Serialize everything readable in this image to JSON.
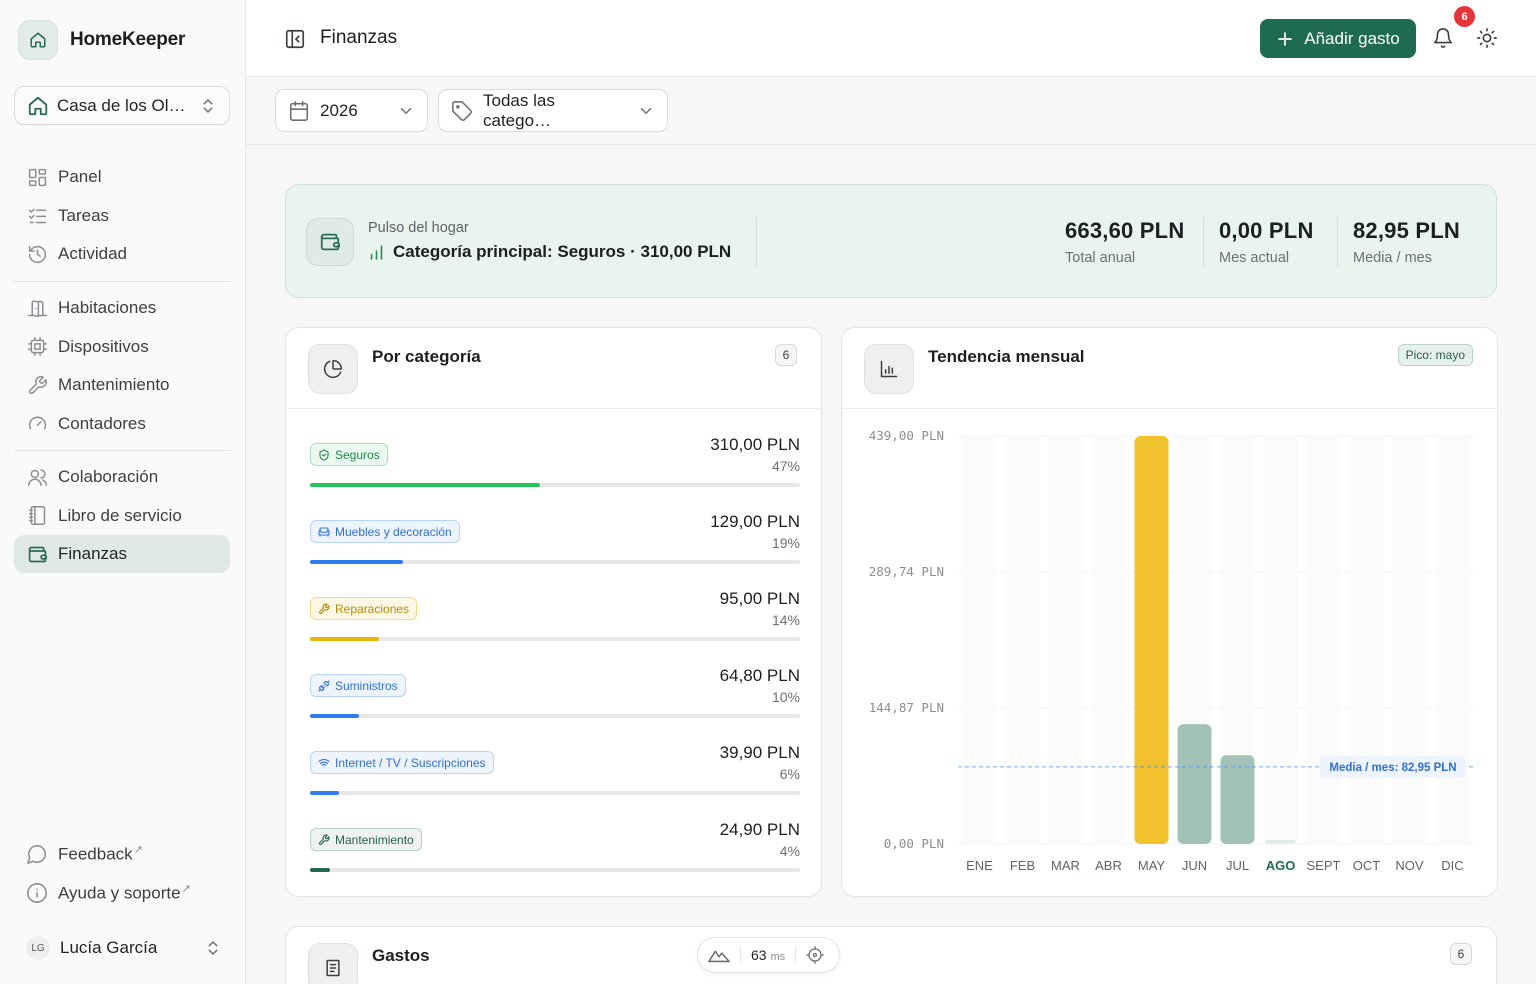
{
  "app": {
    "name": "HomeKeeper",
    "home_select": "Casa de los Ol…"
  },
  "nav": {
    "main": [
      {
        "label": "Panel",
        "icon": "grid-icon"
      },
      {
        "label": "Tareas",
        "icon": "checklist-icon"
      },
      {
        "label": "Actividad",
        "icon": "history-icon"
      }
    ],
    "assets": [
      {
        "label": "Habitaciones",
        "icon": "door-icon"
      },
      {
        "label": "Dispositivos",
        "icon": "chip-icon"
      },
      {
        "label": "Mantenimiento",
        "icon": "wrench-icon"
      },
      {
        "label": "Contadores",
        "icon": "gauge-icon"
      }
    ],
    "other": [
      {
        "label": "Colaboración",
        "icon": "users-icon"
      },
      {
        "label": "Libro de servicio",
        "icon": "book-icon"
      },
      {
        "label": "Finanzas",
        "icon": "wallet-icon",
        "active": true
      }
    ],
    "footer": [
      {
        "label": "Feedback",
        "icon": "chat-icon"
      },
      {
        "label": "Ayuda y soporte",
        "icon": "info-icon"
      }
    ]
  },
  "user": {
    "initials": "LG",
    "name": "Lucía García"
  },
  "header": {
    "title": "Finanzas",
    "add_label": "Añadir gasto",
    "notification_count": "6"
  },
  "filters": {
    "year": "2026",
    "category": "Todas las catego…"
  },
  "pulse": {
    "label": "Pulso del hogar",
    "principal": "Categoría principal: Seguros · 310,00 PLN",
    "kpis": [
      {
        "value": "663,60 PLN",
        "label": "Total anual"
      },
      {
        "value": "0,00 PLN",
        "label": "Mes actual"
      },
      {
        "value": "82,95 PLN",
        "label": "Media / mes"
      }
    ]
  },
  "by_category": {
    "title": "Por categoría",
    "count": "6",
    "rows": [
      {
        "tag": "Seguros",
        "icon": "shield-icon",
        "amount": "310,00 PLN",
        "pct": "47%",
        "fraction": 0.47,
        "color": "#22c55e",
        "bg": "#ecf9f0",
        "border": "#a8e0bb",
        "text": "#1e8a47"
      },
      {
        "tag": "Muebles y decoración",
        "icon": "sofa-icon",
        "amount": "129,00 PLN",
        "pct": "19%",
        "fraction": 0.19,
        "color": "#2f7cf0",
        "bg": "#eef4fe",
        "border": "#b8d2fa",
        "text": "#2f6fd6"
      },
      {
        "tag": "Reparaciones",
        "icon": "hammer-icon",
        "amount": "95,00 PLN",
        "pct": "14%",
        "fraction": 0.14,
        "color": "#eab308",
        "bg": "#fdf8e6",
        "border": "#f1d98a",
        "text": "#b98a05"
      },
      {
        "tag": "Suministros",
        "icon": "plug-icon",
        "amount": "64,80 PLN",
        "pct": "10%",
        "fraction": 0.1,
        "color": "#2f7cf0",
        "bg": "#eef4fe",
        "border": "#b8d2fa",
        "text": "#2f6fd6"
      },
      {
        "tag": "Internet / TV / Suscripciones",
        "icon": "wifi-icon",
        "amount": "39,90 PLN",
        "pct": "6%",
        "fraction": 0.06,
        "color": "#2f7cf0",
        "bg": "#eef4fe",
        "border": "#b8d2fa",
        "text": "#2f6fd6"
      },
      {
        "tag": "Mantenimiento",
        "icon": "wrench-icon",
        "amount": "24,90 PLN",
        "pct": "4%",
        "fraction": 0.04,
        "color": "#1f6b51",
        "bg": "#eef3f0",
        "border": "#b9cfc4",
        "text": "#2b5e4c"
      }
    ]
  },
  "trend": {
    "title": "Tendencia mensual",
    "peak_label": "Pico: mayo",
    "avg_label": "Media / mes: 82,95 PLN"
  },
  "expenses": {
    "title": "Gastos",
    "count": "6"
  },
  "perf": {
    "value": "63",
    "unit": "ms"
  },
  "chart_data": {
    "type": "bar",
    "categories": [
      "ENE",
      "FEB",
      "MAR",
      "ABR",
      "MAY",
      "JUN",
      "JUL",
      "AGO",
      "SEPT",
      "OCT",
      "NOV",
      "DIC"
    ],
    "values": [
      0,
      0,
      0,
      0,
      439,
      129,
      95.6,
      0,
      0,
      0,
      0,
      0
    ],
    "y_ticks": [
      "0,00 PLN",
      "144,87 PLN",
      "289,74 PLN",
      "439,00 PLN"
    ],
    "ylim": [
      0,
      439
    ],
    "average": 82.95,
    "highlight_category": "MAY",
    "current_category": "AGO",
    "colors": {
      "peak": "#f2c12e",
      "normal": "#a3c2b7",
      "current": "#1f6b51",
      "average_line": "#2f7cf0"
    }
  }
}
